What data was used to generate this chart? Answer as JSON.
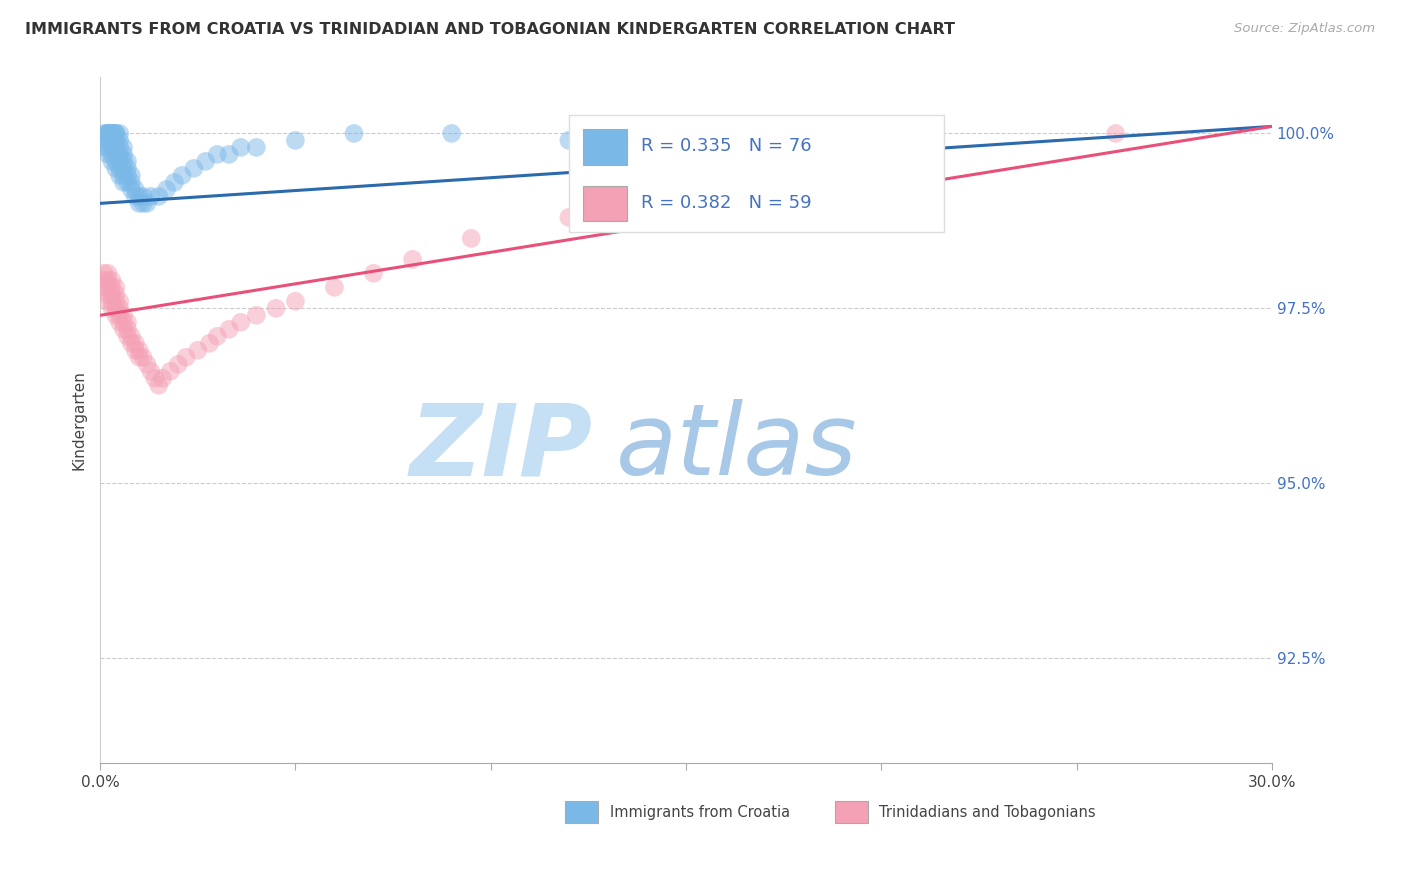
{
  "title": "IMMIGRANTS FROM CROATIA VS TRINIDADIAN AND TOBAGONIAN KINDERGARTEN CORRELATION CHART",
  "source": "Source: ZipAtlas.com",
  "ylabel": "Kindergarten",
  "yticks": [
    "92.5%",
    "95.0%",
    "97.5%",
    "100.0%"
  ],
  "ytick_vals": [
    0.925,
    0.95,
    0.975,
    1.0
  ],
  "xlim": [
    0.0,
    0.3
  ],
  "ylim": [
    0.91,
    1.008
  ],
  "color_croatia": "#7ab8e8",
  "color_trinidad": "#f4a0b5",
  "color_croatia_line": "#2a6aad",
  "color_trinidad_line": "#e8507a",
  "watermark_zip": "ZIP",
  "watermark_atlas": "atlas",
  "watermark_color_zip": "#c8dff5",
  "watermark_color_atlas": "#b0c8e8",
  "legend_r1": "R = 0.335",
  "legend_n1": "N = 76",
  "legend_r2": "R = 0.382",
  "legend_n2": "N = 59",
  "legend_color1": "#7ab8e8",
  "legend_color2": "#f4a0b5",
  "croatia_line_x0": 0.0,
  "croatia_line_x1": 0.3,
  "croatia_line_y0": 0.99,
  "croatia_line_y1": 1.001,
  "trinidad_line_x0": 0.0,
  "trinidad_line_x1": 0.3,
  "trinidad_line_y0": 0.974,
  "trinidad_line_y1": 1.001,
  "croatia_x": [
    0.001,
    0.001,
    0.001,
    0.002,
    0.002,
    0.002,
    0.002,
    0.002,
    0.002,
    0.002,
    0.002,
    0.003,
    0.003,
    0.003,
    0.003,
    0.003,
    0.003,
    0.003,
    0.003,
    0.003,
    0.003,
    0.003,
    0.003,
    0.003,
    0.004,
    0.004,
    0.004,
    0.004,
    0.004,
    0.004,
    0.004,
    0.004,
    0.005,
    0.005,
    0.005,
    0.005,
    0.005,
    0.005,
    0.005,
    0.006,
    0.006,
    0.006,
    0.006,
    0.006,
    0.006,
    0.007,
    0.007,
    0.007,
    0.007,
    0.008,
    0.008,
    0.008,
    0.009,
    0.009,
    0.01,
    0.01,
    0.011,
    0.011,
    0.012,
    0.013,
    0.015,
    0.017,
    0.019,
    0.021,
    0.024,
    0.027,
    0.03,
    0.033,
    0.036,
    0.04,
    0.05,
    0.065,
    0.09,
    0.12,
    0.155,
    0.18
  ],
  "croatia_y": [
    0.998,
    0.999,
    1.0,
    0.997,
    0.998,
    0.999,
    1.0,
    1.0,
    1.0,
    1.0,
    1.0,
    0.996,
    0.997,
    0.998,
    0.999,
    1.0,
    1.0,
    1.0,
    1.0,
    1.0,
    1.0,
    1.0,
    1.0,
    1.0,
    0.995,
    0.996,
    0.997,
    0.998,
    0.999,
    1.0,
    1.0,
    1.0,
    0.994,
    0.995,
    0.996,
    0.997,
    0.998,
    0.999,
    1.0,
    0.993,
    0.994,
    0.995,
    0.996,
    0.997,
    0.998,
    0.993,
    0.994,
    0.995,
    0.996,
    0.992,
    0.993,
    0.994,
    0.991,
    0.992,
    0.99,
    0.991,
    0.99,
    0.991,
    0.99,
    0.991,
    0.991,
    0.992,
    0.993,
    0.994,
    0.995,
    0.996,
    0.997,
    0.997,
    0.998,
    0.998,
    0.999,
    1.0,
    1.0,
    0.999,
    1.0,
    1.0
  ],
  "trinidad_x": [
    0.001,
    0.001,
    0.001,
    0.002,
    0.002,
    0.002,
    0.002,
    0.002,
    0.003,
    0.003,
    0.003,
    0.003,
    0.003,
    0.004,
    0.004,
    0.004,
    0.004,
    0.004,
    0.005,
    0.005,
    0.005,
    0.005,
    0.006,
    0.006,
    0.006,
    0.007,
    0.007,
    0.007,
    0.008,
    0.008,
    0.009,
    0.009,
    0.01,
    0.01,
    0.011,
    0.012,
    0.013,
    0.014,
    0.015,
    0.016,
    0.018,
    0.02,
    0.022,
    0.025,
    0.028,
    0.03,
    0.033,
    0.036,
    0.04,
    0.045,
    0.05,
    0.06,
    0.07,
    0.08,
    0.095,
    0.12,
    0.155,
    0.2,
    0.26
  ],
  "trinidad_y": [
    0.978,
    0.979,
    0.98,
    0.976,
    0.977,
    0.978,
    0.979,
    0.98,
    0.975,
    0.976,
    0.977,
    0.978,
    0.979,
    0.974,
    0.975,
    0.976,
    0.977,
    0.978,
    0.973,
    0.974,
    0.975,
    0.976,
    0.972,
    0.973,
    0.974,
    0.971,
    0.972,
    0.973,
    0.97,
    0.971,
    0.969,
    0.97,
    0.968,
    0.969,
    0.968,
    0.967,
    0.966,
    0.965,
    0.964,
    0.965,
    0.966,
    0.967,
    0.968,
    0.969,
    0.97,
    0.971,
    0.972,
    0.973,
    0.974,
    0.975,
    0.976,
    0.978,
    0.98,
    0.982,
    0.985,
    0.988,
    0.99,
    0.993,
    1.0
  ],
  "bottom_legend_items": [
    {
      "label": "Immigrants from Croatia",
      "color": "#7ab8e8"
    },
    {
      "label": "Trinidadians and Tobagonians",
      "color": "#f4a0b5"
    }
  ]
}
